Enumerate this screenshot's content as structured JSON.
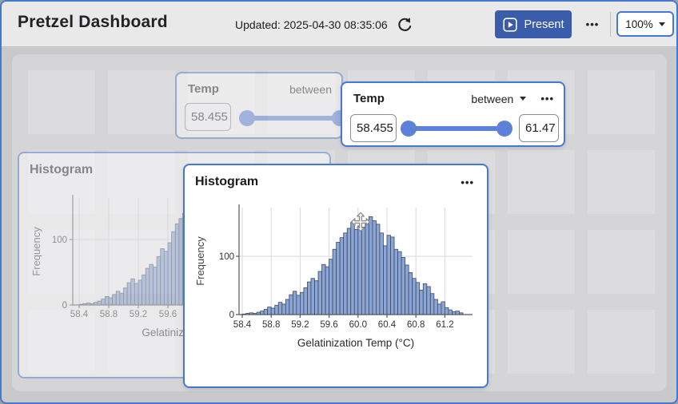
{
  "header": {
    "title": "Pretzel Dashboard",
    "updated": "Updated: 2025-04-30 08:35:06",
    "present_label": "Present",
    "more_menu": "•••",
    "zoom_level": "100%"
  },
  "filter": {
    "title": "Temp",
    "operator": "between",
    "min": "58.455",
    "max": "61.47",
    "menu": "•••"
  },
  "histogram": {
    "title": "Histogram",
    "menu": "•••"
  },
  "chart_data": {
    "type": "bar",
    "title": "Histogram",
    "xlabel": "Gelatinization Temp (°C)",
    "ylabel": "Frequency",
    "bin_start": 58.4,
    "bin_width": 0.05,
    "xlim": [
      58.35,
      61.5
    ],
    "ylim": [
      0,
      175
    ],
    "xticks": [
      58.4,
      58.8,
      59.2,
      59.6,
      60.0,
      60.4,
      60.8,
      61.2
    ],
    "yticks": [
      0,
      100
    ],
    "grid": true,
    "values": [
      1,
      2,
      3,
      2,
      4,
      6,
      9,
      13,
      11,
      16,
      21,
      18,
      26,
      34,
      40,
      33,
      38,
      46,
      56,
      62,
      58,
      74,
      86,
      82,
      95,
      112,
      124,
      132,
      140,
      148,
      158,
      146,
      152,
      150,
      156,
      168,
      161,
      155,
      140,
      118,
      136,
      133,
      112,
      108,
      98,
      85,
      72,
      62,
      55,
      42,
      53,
      48,
      36,
      26,
      18,
      22,
      12,
      8,
      5,
      6,
      3
    ],
    "bar_fill": "#8ca5d5",
    "bar_stroke": "#3b4a63"
  },
  "colors": {
    "accent": "#4579cf",
    "present_bg": "#3a5caa",
    "slider": "#5b82d8",
    "panel_bg": "#d5d5d8",
    "tile_bg": "#dcdcdf",
    "header_bg": "#e9e9ea"
  }
}
